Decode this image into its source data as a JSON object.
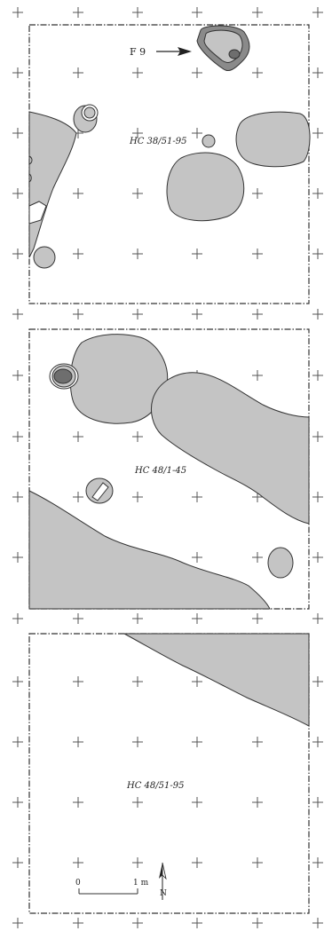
{
  "labels": {
    "feature": "F 9",
    "panel1": "HC 38/51-95",
    "panel2": "HC 48/1-45",
    "panel3": "HC 48/51-95"
  },
  "scale": {
    "zero": "0",
    "one": "1 m"
  },
  "north": "N",
  "colors": {
    "fill_light": "#c4c4c4",
    "fill_dark": "#6e6e6e",
    "outline": "#333333"
  }
}
